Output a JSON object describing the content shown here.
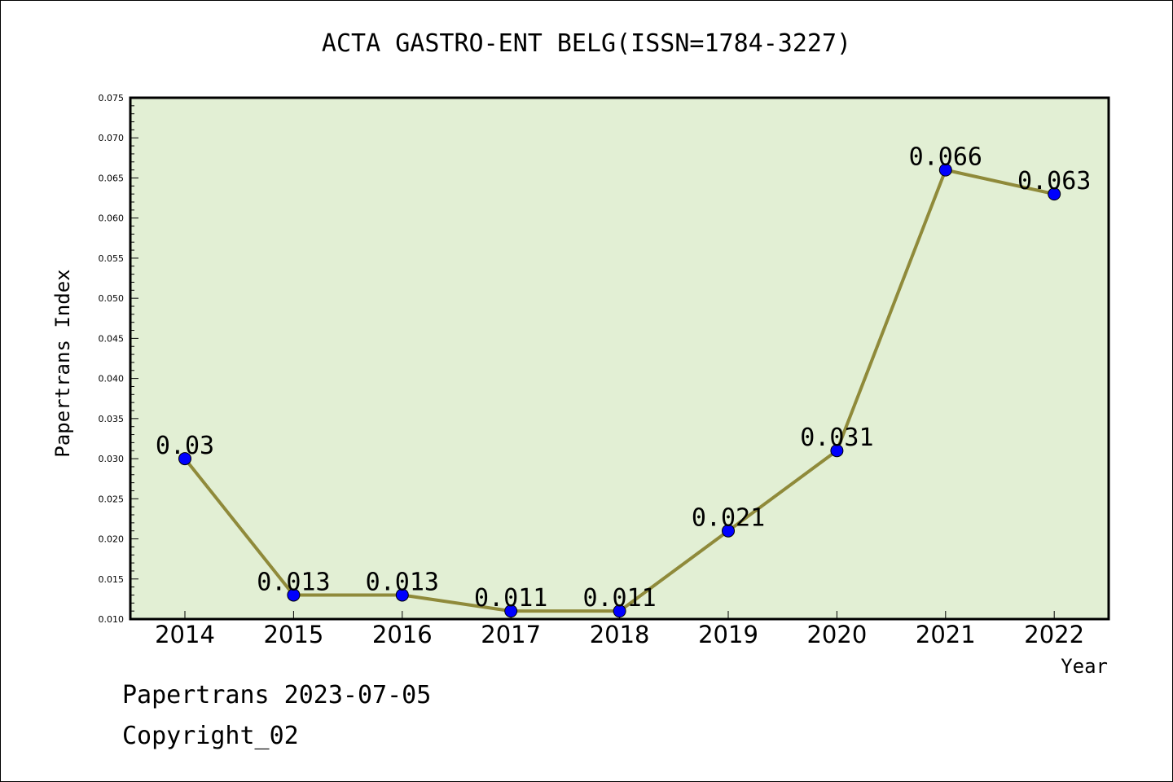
{
  "chart_data": {
    "type": "line",
    "title": "ACTA GASTRO-ENT BELG(ISSN=1784-3227)",
    "xlabel": "Year",
    "ylabel": "Papertrans Index",
    "categories": [
      "2014",
      "2015",
      "2016",
      "2017",
      "2018",
      "2019",
      "2020",
      "2021",
      "2022"
    ],
    "values": [
      0.03,
      0.013,
      0.013,
      0.011,
      0.011,
      0.021,
      0.031,
      0.066,
      0.063
    ],
    "data_labels": [
      "0.03",
      "0.013",
      "0.013",
      "0.011",
      "0.011",
      "0.021",
      "0.031",
      "0.066",
      "0.063"
    ],
    "ylim": [
      0.01,
      0.075
    ],
    "yticks": [
      "0.010",
      "0.015",
      "0.020",
      "0.025",
      "0.030",
      "0.035",
      "0.040",
      "0.045",
      "0.050",
      "0.055",
      "0.060",
      "0.065",
      "0.070",
      "0.075"
    ],
    "grid": false,
    "colors": {
      "plot_background": "#e2efd4",
      "line": "#8f8a3a",
      "marker": "#0000ff"
    }
  },
  "footer": {
    "source": "Papertrans 2023-07-05",
    "copyright": "Copyright_02"
  }
}
